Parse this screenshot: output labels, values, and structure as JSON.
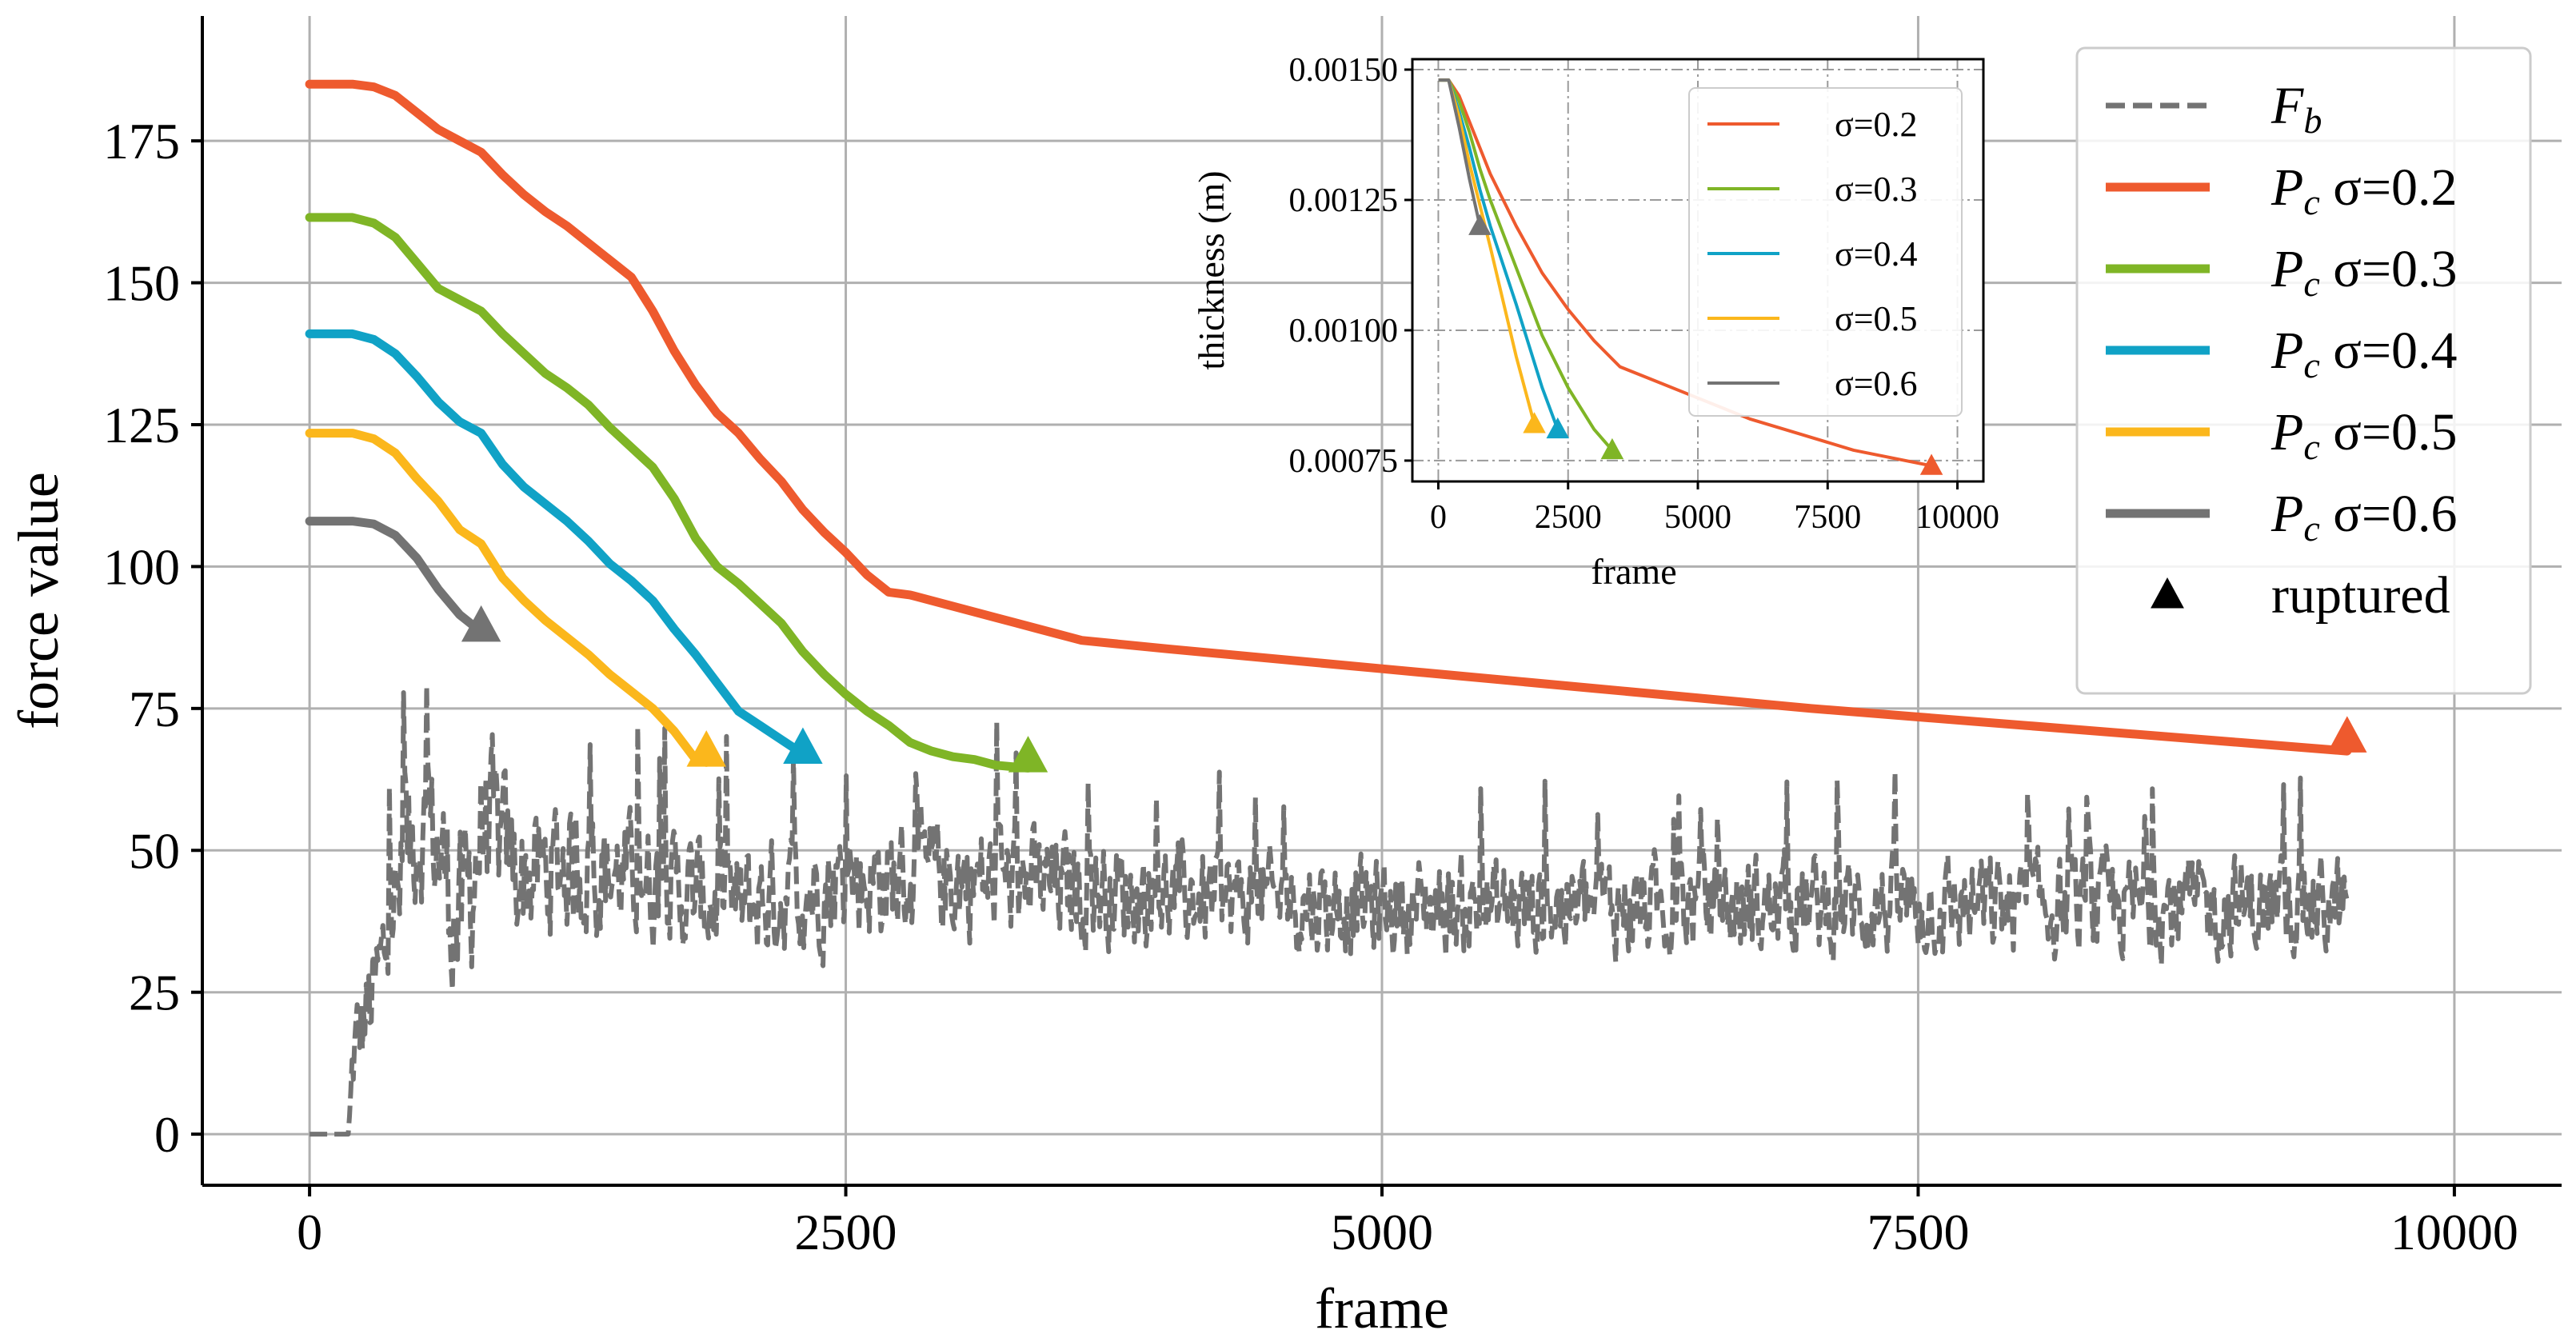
{
  "chart_data": [
    {
      "type": "line",
      "id": "main",
      "xlabel": "frame",
      "ylabel": "force value",
      "xlim": [
        -500,
        10500
      ],
      "ylim": [
        -9,
        197
      ],
      "xticks": [
        0,
        2500,
        5000,
        7500,
        10000
      ],
      "yticks": [
        0,
        25,
        50,
        75,
        100,
        125,
        150,
        175
      ],
      "grid": true,
      "legend": {
        "placement": "top-right",
        "entries": [
          {
            "label_main": "F",
            "label_sub": "b",
            "label_rest": "",
            "style": "dashed",
            "color": "#737373"
          },
          {
            "label_main": "P",
            "label_sub": "c",
            "label_rest": " σ=0.2",
            "style": "solid",
            "color": "#ee5a2e"
          },
          {
            "label_main": "P",
            "label_sub": "c",
            "label_rest": " σ=0.3",
            "style": "solid",
            "color": "#7fb526"
          },
          {
            "label_main": "P",
            "label_sub": "c",
            "label_rest": " σ=0.4",
            "style": "solid",
            "color": "#10a2c6"
          },
          {
            "label_main": "P",
            "label_sub": "c",
            "label_rest": " σ=0.5",
            "style": "solid",
            "color": "#fbb71c"
          },
          {
            "label_main": "P",
            "label_sub": "c",
            "label_rest": " σ=0.6",
            "style": "solid",
            "color": "#737373"
          },
          {
            "label_main": "ruptured",
            "label_sub": "",
            "label_rest": "",
            "style": "marker",
            "color": "#000000"
          }
        ]
      },
      "series": [
        {
          "name": "P_c σ=0.2",
          "color": "#ee5a2e",
          "x": [
            0,
            200,
            300,
            400,
            500,
            600,
            700,
            800,
            900,
            1000,
            1100,
            1200,
            1300,
            1400,
            1500,
            1600,
            1700,
            1800,
            1900,
            2000,
            2100,
            2200,
            2300,
            2400,
            2500,
            2600,
            2700,
            2800,
            3000,
            3200,
            3400,
            3600,
            4000,
            5000,
            6000,
            7000,
            8000,
            9000,
            9500
          ],
          "y": [
            185,
            185,
            184.5,
            183,
            180,
            177,
            175,
            173,
            169,
            165.5,
            162.5,
            160,
            157,
            154,
            151,
            145,
            138,
            132,
            127,
            123.5,
            119,
            115,
            110,
            106,
            102.5,
            98.5,
            95.5,
            95,
            93,
            91,
            89,
            87,
            85.5,
            82,
            78.5,
            75,
            72,
            69,
            67.5
          ],
          "rupture": [
            9500,
            70
          ]
        },
        {
          "name": "P_c σ=0.3",
          "color": "#7fb526",
          "x": [
            0,
            200,
            300,
            400,
            500,
            600,
            700,
            800,
            900,
            1000,
            1100,
            1200,
            1300,
            1400,
            1500,
            1600,
            1700,
            1800,
            1900,
            2000,
            2100,
            2200,
            2300,
            2400,
            2500,
            2600,
            2700,
            2800,
            2900,
            3000,
            3100,
            3200,
            3350
          ],
          "y": [
            161.5,
            161.5,
            160.5,
            158,
            153.5,
            149,
            147,
            145,
            141,
            137.5,
            134,
            131.5,
            128.5,
            124.5,
            121,
            117.5,
            112,
            105,
            100,
            97,
            93.5,
            90,
            85,
            81,
            77.5,
            74.5,
            72,
            69,
            67.5,
            66.5,
            66,
            65,
            64.5
          ],
          "rupture": [
            3350,
            66.5
          ]
        },
        {
          "name": "P_c σ=0.4",
          "color": "#10a2c6",
          "x": [
            0,
            200,
            300,
            400,
            500,
            600,
            700,
            800,
            900,
            1000,
            1100,
            1200,
            1300,
            1400,
            1500,
            1600,
            1700,
            1800,
            1900,
            2000,
            2100,
            2200,
            2300
          ],
          "y": [
            141,
            141,
            140,
            137.5,
            133.5,
            129,
            125.5,
            123.5,
            118,
            114,
            111,
            108,
            104.5,
            100.5,
            97.5,
            94,
            89,
            84.5,
            79.5,
            74.5,
            72,
            69.5,
            67
          ],
          "rupture": [
            2300,
            68
          ]
        },
        {
          "name": "P_c σ=0.5",
          "color": "#fbb71c",
          "x": [
            0,
            200,
            300,
            400,
            500,
            600,
            700,
            800,
            900,
            1000,
            1100,
            1200,
            1300,
            1400,
            1500,
            1600,
            1700,
            1800,
            1850
          ],
          "y": [
            123.5,
            123.5,
            122.5,
            120,
            115.5,
            111.5,
            106.5,
            104,
            98,
            94,
            90.5,
            87.5,
            84.5,
            81,
            78,
            75,
            71,
            66,
            65.5
          ],
          "rupture": [
            1850,
            67.5
          ]
        },
        {
          "name": "P_c σ=0.6",
          "color": "#737373",
          "x": [
            0,
            200,
            300,
            400,
            500,
            600,
            700,
            800
          ],
          "y": [
            108,
            108,
            107.5,
            105.5,
            101.5,
            96,
            91.5,
            88.5
          ],
          "rupture": [
            800,
            89.5
          ]
        }
      ],
      "noise_series": {
        "name": "F_b",
        "color": "#737373",
        "style": "dashed",
        "x_range": [
          0,
          9500
        ],
        "envelope_x": [
          0,
          180,
          200,
          300,
          400,
          500,
          600,
          700,
          800,
          900,
          1000,
          1200,
          1500,
          2000,
          2500,
          3000,
          4000,
          5000,
          6000,
          7000,
          8000,
          9000,
          9500
        ],
        "envelope_mean": [
          0,
          0,
          15,
          25,
          40,
          55,
          50,
          35,
          55,
          50,
          45,
          48,
          45,
          40,
          45,
          45,
          42,
          40,
          40,
          40,
          40,
          40,
          40
        ],
        "envelope_spread": [
          0,
          0,
          10,
          12,
          15,
          15,
          15,
          20,
          18,
          15,
          14,
          14,
          12,
          12,
          12,
          12,
          10,
          10,
          10,
          10,
          10,
          10,
          10
        ]
      }
    },
    {
      "type": "line",
      "id": "inset",
      "xlabel": "frame",
      "ylabel": "thickness (m)",
      "xlim": [
        -500,
        10500
      ],
      "ylim": [
        0.00071,
        0.00152
      ],
      "xticks": [
        0,
        2500,
        5000,
        7500,
        10000
      ],
      "yticks": [
        0.00075,
        0.001,
        0.00125,
        0.0015
      ],
      "xtick_labels": [
        "0",
        "2500",
        "5000",
        "7500",
        "10000"
      ],
      "ytick_labels": [
        "0.00075",
        "0.00100",
        "0.00125",
        "0.00150"
      ],
      "grid": true,
      "legend": {
        "placement": "top-right",
        "entries": [
          {
            "label": "σ=0.2",
            "color": "#ee5a2e"
          },
          {
            "label": "σ=0.3",
            "color": "#7fb526"
          },
          {
            "label": "σ=0.4",
            "color": "#10a2c6"
          },
          {
            "label": "σ=0.5",
            "color": "#fbb71c"
          },
          {
            "label": "σ=0.6",
            "color": "#737373"
          }
        ]
      },
      "series": [
        {
          "name": "σ=0.2",
          "color": "#ee5a2e",
          "x": [
            0,
            200,
            400,
            600,
            800,
            1000,
            1500,
            2000,
            2500,
            3000,
            3500,
            4000,
            5000,
            6000,
            7000,
            8000,
            9000,
            9500
          ],
          "y": [
            0.00148,
            0.00148,
            0.00145,
            0.0014,
            0.00135,
            0.0013,
            0.0012,
            0.00111,
            0.00104,
            0.00098,
            0.00093,
            0.00091,
            0.00087,
            0.00083,
            0.0008,
            0.00077,
            0.00075,
            0.00074
          ],
          "rupture": [
            9500,
            0.00074
          ]
        },
        {
          "name": "σ=0.3",
          "color": "#7fb526",
          "x": [
            0,
            200,
            400,
            600,
            800,
            1000,
            1500,
            2000,
            2500,
            3000,
            3350
          ],
          "y": [
            0.00148,
            0.00148,
            0.00144,
            0.00138,
            0.00131,
            0.00125,
            0.00112,
            0.00099,
            0.00089,
            0.00081,
            0.00077
          ],
          "rupture": [
            3350,
            0.00077
          ]
        },
        {
          "name": "σ=0.4",
          "color": "#10a2c6",
          "x": [
            0,
            200,
            400,
            600,
            800,
            1000,
            1500,
            2000,
            2300
          ],
          "y": [
            0.00148,
            0.00148,
            0.00142,
            0.00135,
            0.00127,
            0.0012,
            0.00105,
            0.00089,
            0.00081
          ],
          "rupture": [
            2300,
            0.00081
          ]
        },
        {
          "name": "σ=0.5",
          "color": "#fbb71c",
          "x": [
            0,
            200,
            400,
            600,
            800,
            1000,
            1500,
            1850
          ],
          "y": [
            0.00148,
            0.00148,
            0.00141,
            0.00132,
            0.00124,
            0.00116,
            0.00095,
            0.00082
          ],
          "rupture": [
            1850,
            0.00082
          ]
        },
        {
          "name": "σ=0.6",
          "color": "#737373",
          "x": [
            0,
            200,
            400,
            600,
            800
          ],
          "y": [
            0.00148,
            0.00148,
            0.00139,
            0.00129,
            0.0012
          ],
          "rupture": [
            800,
            0.0012
          ]
        }
      ]
    }
  ]
}
